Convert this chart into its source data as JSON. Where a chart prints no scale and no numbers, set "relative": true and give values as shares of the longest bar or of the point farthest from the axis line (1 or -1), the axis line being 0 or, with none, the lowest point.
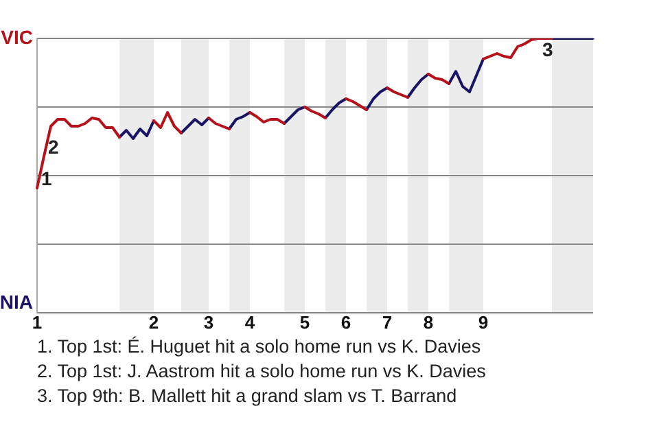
{
  "chart_data": {
    "type": "line",
    "relative": true,
    "categories": [
      "1",
      null,
      null,
      null,
      null,
      null,
      null,
      null,
      null,
      null,
      null,
      null,
      null,
      null,
      null,
      null,
      null,
      "2",
      null,
      null,
      null,
      null,
      null,
      null,
      null,
      "3",
      null,
      null,
      null,
      null,
      null,
      "4",
      null,
      null,
      null,
      null,
      null,
      null,
      null,
      "5",
      null,
      null,
      null,
      null,
      null,
      "6",
      null,
      null,
      null,
      null,
      null,
      "7",
      null,
      null,
      null,
      null,
      null,
      "8",
      null,
      null,
      null,
      null,
      null,
      null,
      null,
      "9",
      null,
      null,
      null,
      null,
      null,
      null,
      null,
      null,
      null,
      null,
      null,
      null,
      null,
      null,
      null,
      null
    ],
    "series": [
      {
        "color": "#b5121b",
        "values": [
          0.455,
          0.57,
          0.68,
          0.705,
          0.705,
          0.68,
          0.68,
          0.69,
          0.71,
          0.705,
          0.675,
          0.675,
          0.64,
          null,
          null,
          null,
          null,
          0.7,
          0.675,
          0.73,
          0.68,
          0.655,
          null,
          null,
          null,
          0.71,
          0.69,
          0.68,
          0.67,
          null,
          null,
          0.73,
          0.715,
          0.695,
          0.705,
          0.705,
          0.69,
          null,
          null,
          0.75,
          0.735,
          0.725,
          0.71,
          null,
          null,
          0.78,
          0.77,
          0.755,
          0.74,
          null,
          null,
          0.82,
          0.805,
          0.795,
          0.785,
          null,
          null,
          0.87,
          0.855,
          0.85,
          0.835,
          null,
          null,
          null,
          null,
          0.925,
          0.935,
          0.945,
          0.935,
          0.93,
          0.97,
          0.98,
          0.995,
          1,
          1,
          1,
          null,
          null,
          null,
          null,
          null,
          null
        ]
      },
      {
        "color": "#1a1464",
        "values": [
          null,
          null,
          null,
          null,
          null,
          null,
          null,
          null,
          null,
          null,
          null,
          null,
          0.64,
          0.665,
          0.635,
          0.67,
          0.645,
          0.7,
          null,
          null,
          null,
          0.655,
          0.68,
          0.705,
          0.685,
          0.71,
          null,
          null,
          0.67,
          0.705,
          0.715,
          0.73,
          null,
          null,
          null,
          null,
          0.69,
          0.715,
          0.74,
          0.75,
          null,
          null,
          0.71,
          0.74,
          0.765,
          0.78,
          null,
          null,
          0.74,
          0.78,
          0.805,
          0.82,
          null,
          null,
          0.785,
          0.82,
          0.85,
          0.87,
          null,
          null,
          0.835,
          0.88,
          0.825,
          0.805,
          0.865,
          0.925,
          null,
          null,
          null,
          null,
          null,
          null,
          null,
          null,
          null,
          1,
          1,
          1,
          1,
          1,
          1,
          1
        ]
      }
    ],
    "grid": "y",
    "legend": false,
    "marker": "none",
    "line_style": "solid",
    "annotations": [
      "1",
      "2",
      "3",
      "VIC",
      "NIA",
      "1. Top 1st: É. Huguet hit a solo home run vs K. Davies",
      "2. Top 1st: J. Aastrom hit a solo home run vs K. Davies",
      "3. Top 9th: B. Mallett hit a grand slam vs T. Barrand"
    ]
  }
}
